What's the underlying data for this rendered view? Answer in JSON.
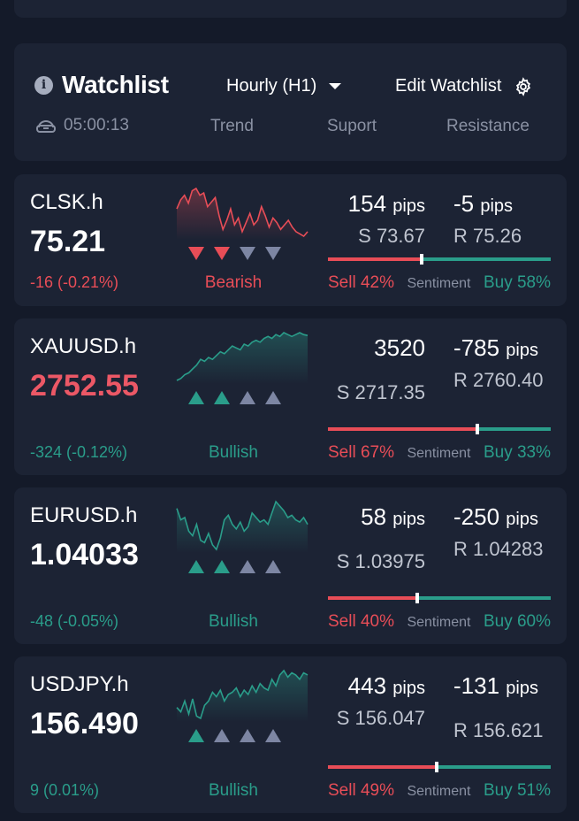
{
  "header": {
    "title": "Watchlist",
    "timeframe": "Hourly (H1)",
    "edit_label": "Edit Watchlist",
    "timer": "05:00:13",
    "columns": [
      "Trend",
      "Suport",
      "Resistance"
    ]
  },
  "colors": {
    "bearish": "#e84d57",
    "bullish": "#2a9d8a",
    "neutral": "#7d86a3",
    "card": "#1c2334"
  },
  "rows": [
    {
      "symbol": "CLSK.h",
      "price": "75.21",
      "change": "-16 (-0.21%)",
      "trend": "Bearish",
      "arrows": [
        "down",
        "down",
        "neutral-down",
        "neutral-down"
      ],
      "support_pips": "154",
      "resistance_pips": "-5",
      "pips_unit": "pips",
      "support": "S 73.67",
      "resistance": "R 75.26",
      "sell_pct": 42,
      "buy_pct": 58,
      "sell_label": "Sell 42%",
      "buy_label": "Buy 58%",
      "sentiment_label": "Sentiment",
      "spark": [
        30,
        22,
        18,
        25,
        14,
        12,
        18,
        16,
        28,
        24,
        20,
        36,
        48,
        40,
        30,
        44,
        38,
        50,
        42,
        34,
        44,
        40,
        28,
        36,
        46,
        38,
        42,
        48,
        44,
        40,
        46,
        50,
        52,
        54,
        50
      ]
    },
    {
      "symbol": "XAUUSD.h",
      "price": "2752.55",
      "change": "-324 (-0.12%)",
      "trend": "Bullish",
      "arrows": [
        "up",
        "up",
        "neutral-up",
        "neutral-up"
      ],
      "support_pips": "3520",
      "resistance_pips": "-785",
      "pips_unit": "pips",
      "support": "S 2717.35",
      "resistance": "R 2760.40",
      "sell_pct": 67,
      "buy_pct": 33,
      "sell_label": "Sell 67%",
      "buy_label": "Buy 33%",
      "sentiment_label": "Sentiment",
      "spark": [
        52,
        50,
        46,
        44,
        40,
        36,
        30,
        32,
        28,
        30,
        26,
        22,
        24,
        20,
        16,
        18,
        20,
        14,
        16,
        12,
        10,
        12,
        8,
        6,
        8,
        4,
        6,
        2,
        4,
        6,
        4,
        2,
        4,
        5
      ]
    },
    {
      "symbol": "EURUSD.h",
      "price": "1.04033",
      "change": "-48 (-0.05%)",
      "trend": "Bullish",
      "arrows": [
        "up",
        "up",
        "neutral-up",
        "neutral-up"
      ],
      "support_pips": "58",
      "resistance_pips": "-250",
      "pips_unit": "pips",
      "support": "S 1.03975",
      "resistance": "R 1.04283",
      "sell_pct": 40,
      "buy_pct": 60,
      "sell_label": "Sell 40%",
      "buy_label": "Buy 60%",
      "sentiment_label": "Sentiment",
      "spark": [
        10,
        20,
        18,
        30,
        34,
        24,
        38,
        40,
        32,
        42,
        46,
        36,
        20,
        16,
        24,
        28,
        22,
        30,
        26,
        14,
        18,
        22,
        20,
        24,
        14,
        4,
        8,
        12,
        18,
        16,
        20,
        22,
        18,
        24
      ]
    },
    {
      "symbol": "USDJPY.h",
      "price": "156.490",
      "change": "9 (0.01%)",
      "trend": "Bullish",
      "arrows": [
        "up",
        "neutral-up",
        "neutral-up",
        "neutral-up"
      ],
      "support_pips": "443",
      "resistance_pips": "-131",
      "pips_unit": "pips",
      "support": "S 156.047",
      "resistance": "R 156.621",
      "sell_pct": 49,
      "buy_pct": 51,
      "sell_label": "Sell 49%",
      "buy_label": "Buy 51%",
      "sentiment_label": "Sentiment",
      "spark": [
        36,
        40,
        30,
        42,
        28,
        44,
        46,
        34,
        30,
        22,
        26,
        20,
        30,
        24,
        22,
        18,
        26,
        20,
        24,
        16,
        22,
        14,
        18,
        20,
        10,
        16,
        6,
        2,
        8,
        4,
        6,
        10,
        4,
        6
      ]
    }
  ]
}
